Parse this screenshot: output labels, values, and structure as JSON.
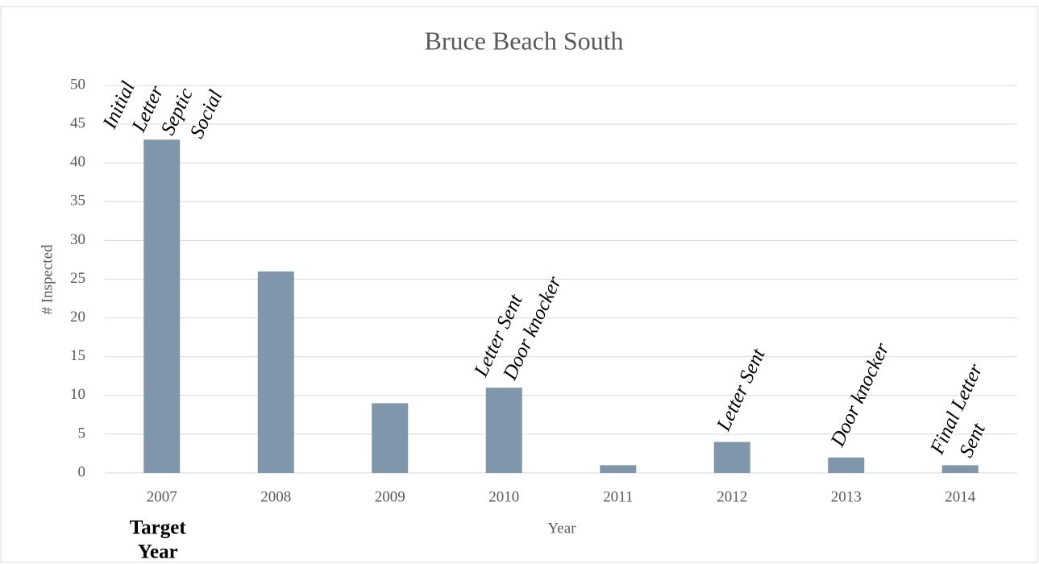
{
  "chart_data": {
    "type": "bar",
    "title": "Bruce Beach South",
    "x_label": "Year",
    "y_label": "# Inspected",
    "categories": [
      "2007",
      "2008",
      "2009",
      "2010",
      "2011",
      "2012",
      "2013",
      "2014"
    ],
    "values": [
      43,
      26,
      9,
      11,
      1,
      4,
      2,
      1
    ],
    "color": "#7f96ab",
    "ylim": [
      0,
      50
    ],
    "yticks": [
      0,
      5,
      10,
      15,
      20,
      25,
      30,
      35,
      40,
      45,
      50
    ],
    "grid": true,
    "annotations": [
      {
        "category": "2007",
        "lines": [
          "Initial",
          "Letter",
          "Septic",
          "Social"
        ]
      },
      {
        "category": "2010",
        "lines": [
          "Letter Sent",
          "Door knocker"
        ]
      },
      {
        "category": "2012",
        "lines": [
          "Letter Sent"
        ]
      },
      {
        "category": "2013",
        "lines": [
          "Door knocker"
        ]
      },
      {
        "category": "2014",
        "lines": [
          "Final Letter",
          "Sent"
        ]
      }
    ],
    "note": {
      "category": "2007",
      "lines": [
        "Target",
        "Year"
      ]
    }
  }
}
